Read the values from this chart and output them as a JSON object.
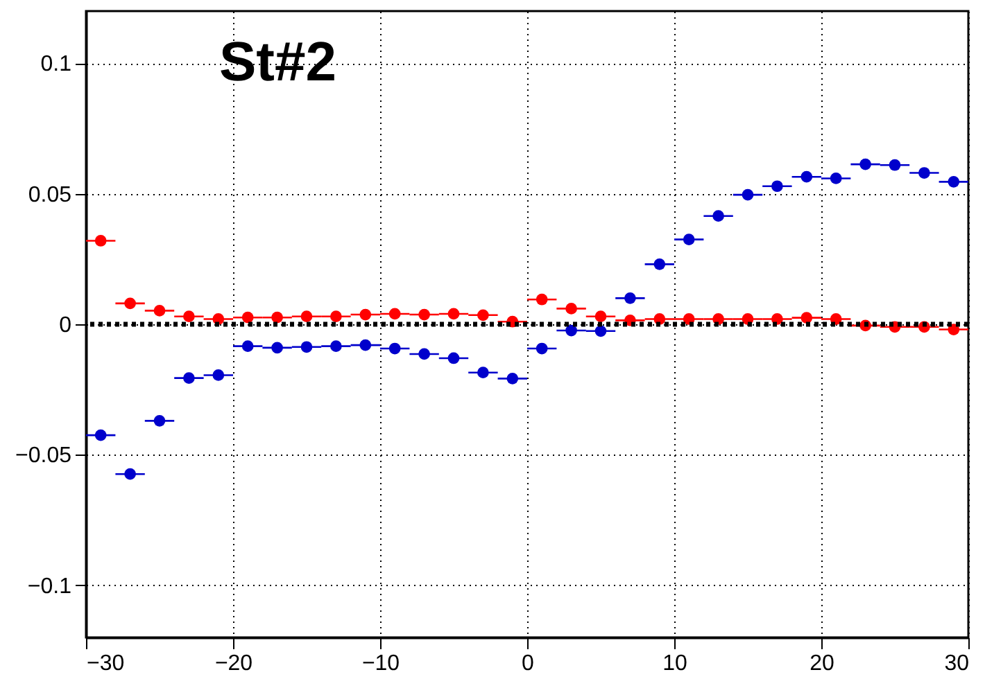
{
  "chart_data": {
    "type": "scatter",
    "annotations": [
      "St#2"
    ],
    "x": [
      -29,
      -27,
      -25,
      -23,
      -21,
      -19,
      -17,
      -15,
      -13,
      -11,
      -9,
      -7,
      -5,
      -3,
      -1,
      1,
      3,
      5,
      7,
      9,
      11,
      13,
      15,
      17,
      19,
      21,
      23,
      25,
      27,
      29
    ],
    "series": [
      {
        "color": "#ff0000",
        "values": [
          0.032,
          0.008,
          0.0052,
          0.003,
          0.002,
          0.0026,
          0.0026,
          0.003,
          0.003,
          0.0037,
          0.004,
          0.0037,
          0.004,
          0.0035,
          0.001,
          0.0095,
          0.006,
          0.003,
          0.0015,
          0.002,
          0.002,
          0.002,
          0.002,
          0.002,
          0.0025,
          0.002,
          -0.0005,
          -0.001,
          -0.001,
          -0.002
        ],
        "xerrors": [
          1,
          1,
          1,
          1,
          1,
          1,
          1,
          1,
          1,
          1,
          1,
          1,
          1,
          1,
          1,
          1,
          1,
          1,
          1,
          1,
          1,
          1,
          1,
          1,
          1,
          1,
          1,
          1,
          1,
          1
        ]
      },
      {
        "color": "#0000cc",
        "values": [
          -0.0425,
          -0.0574,
          -0.037,
          -0.0206,
          -0.0195,
          -0.0084,
          -0.009,
          -0.0087,
          -0.0084,
          -0.008,
          -0.0093,
          -0.0114,
          -0.013,
          -0.0185,
          -0.0208,
          -0.0093,
          -0.0024,
          -0.0026,
          0.01,
          0.023,
          0.0325,
          0.0415,
          0.0496,
          0.0529,
          0.0565,
          0.0559,
          0.0613,
          0.061,
          0.058,
          0.0546
        ],
        "xerrors": [
          1,
          1,
          1,
          1,
          1,
          1,
          1,
          1,
          1,
          1,
          1,
          1,
          1,
          1,
          1,
          1,
          1,
          1,
          1,
          1,
          1,
          1,
          1,
          1,
          1,
          1,
          1,
          1,
          1,
          1
        ]
      }
    ],
    "xlim": [
      -30,
      30
    ],
    "xticks": [
      {
        "value": -30,
        "label": "−30"
      },
      {
        "value": -20,
        "label": "−20"
      },
      {
        "value": -10,
        "label": "−10"
      },
      0,
      10,
      20,
      30
    ],
    "ylim": [
      -0.12,
      0.12
    ],
    "yticks": [
      {
        "value": -0.1,
        "label": "−0.1"
      },
      {
        "value": -0.05,
        "label": "−0.05"
      },
      0,
      0.05,
      0.1
    ],
    "ref_lines": [
      {
        "axis": "y",
        "value": 0,
        "color": "#000000",
        "line_style": "dotted"
      }
    ],
    "grid": true,
    "marker": "circle"
  }
}
